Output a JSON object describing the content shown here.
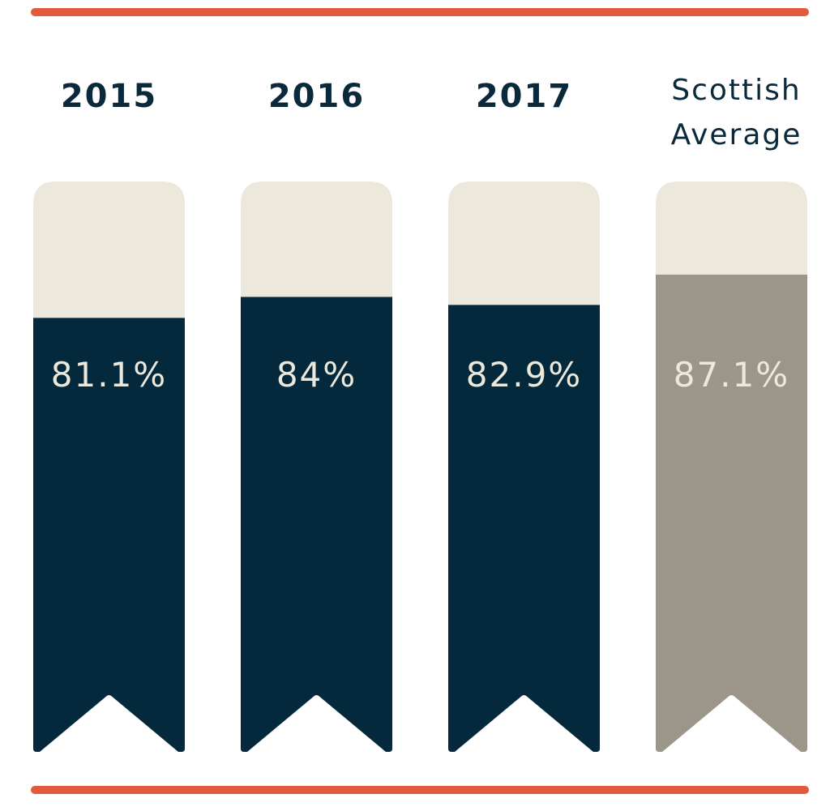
{
  "colors": {
    "accent_rule": "#e3593b",
    "bar_track": "#ece8dc",
    "bar_year": "#04293c",
    "bar_average": "#9b958a",
    "value_text": "#ece8dc",
    "label_text": "#0a2a3c"
  },
  "chart_data": {
    "type": "bar",
    "title": "",
    "xlabel": "",
    "ylabel": "",
    "ylim": [
      0,
      100
    ],
    "grid": false,
    "categories": [
      {
        "label": [
          "2015"
        ],
        "value": 81.1,
        "value_label": "81.1%",
        "color": "#04293c"
      },
      {
        "label": [
          "2016"
        ],
        "value": 84,
        "value_label": "84%",
        "color": "#04293c"
      },
      {
        "label": [
          "2017"
        ],
        "value": 82.9,
        "value_label": "82.9%",
        "color": "#04293c"
      },
      {
        "label": [
          "Scottish",
          "Average"
        ],
        "value": 87.1,
        "value_label": "87.1%",
        "color": "#9b958a"
      }
    ]
  }
}
